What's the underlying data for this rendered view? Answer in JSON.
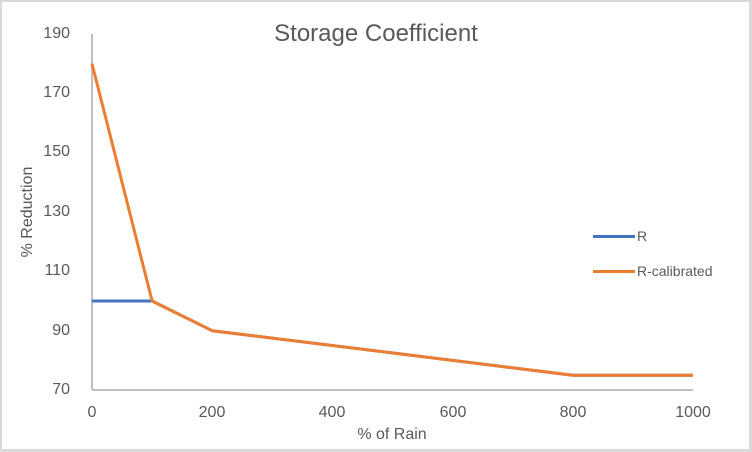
{
  "chart_data": {
    "type": "line",
    "title": "Storage Coefficient",
    "xlabel": "% of Rain",
    "ylabel": "% Reduction",
    "xlim": [
      0,
      1000
    ],
    "ylim": [
      70,
      190
    ],
    "x_ticks": [
      "0",
      "200",
      "400",
      "600",
      "800",
      "1000"
    ],
    "y_ticks": [
      "190",
      "170",
      "150",
      "130",
      "110",
      "90",
      "70"
    ],
    "grid": false,
    "legend_position": "right",
    "series": [
      {
        "name": "R",
        "color": "#4472c4",
        "x": [
          0,
          100,
          200,
          800,
          1000
        ],
        "values": [
          100,
          100,
          90,
          75,
          75
        ]
      },
      {
        "name": "R-calibrated",
        "color": "#ed7d31",
        "x": [
          0,
          100,
          200,
          800,
          1000
        ],
        "values": [
          180,
          100,
          90,
          75,
          75
        ]
      }
    ]
  },
  "legend": {
    "items": [
      {
        "label": "R",
        "color": "#4472c4"
      },
      {
        "label": "R-calibrated",
        "color": "#ed7d31"
      }
    ]
  }
}
